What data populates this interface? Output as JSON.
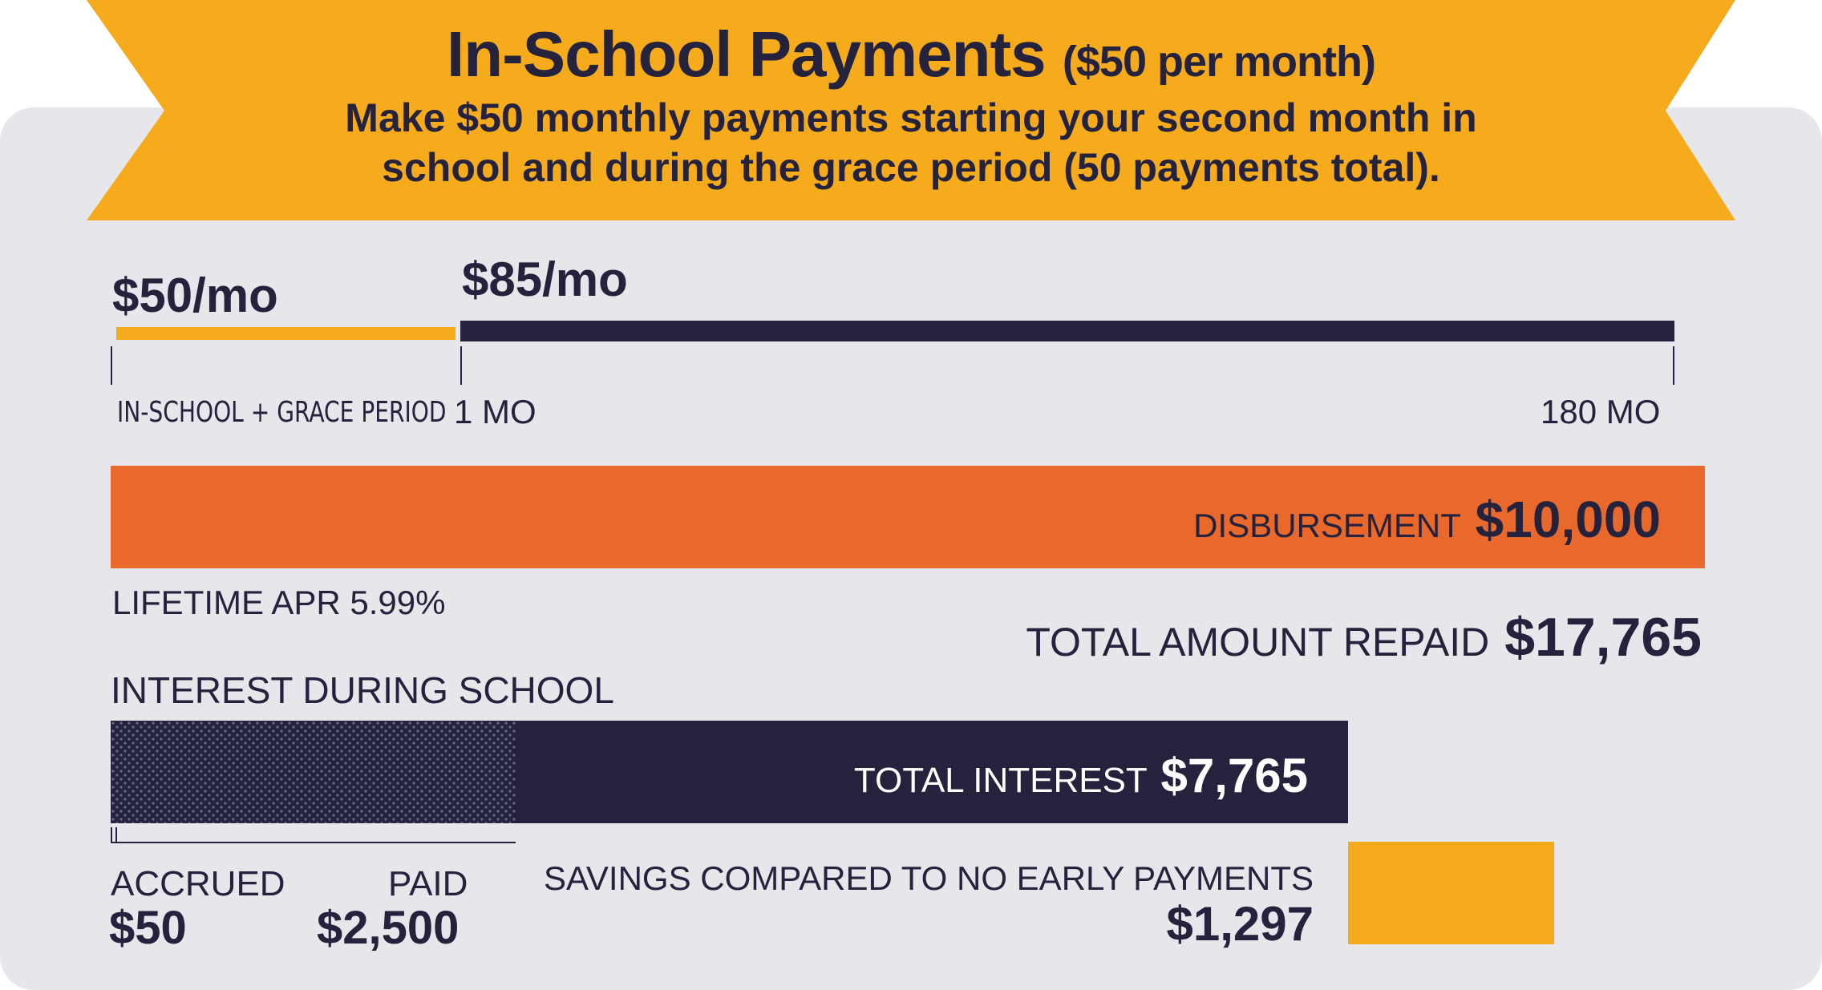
{
  "header": {
    "title": "In-School Payments",
    "title_suffix": "($50 per month)",
    "subtitle_line1": "Make $50 monthly payments starting your second month in",
    "subtitle_line2": "school and during the grace period (50 payments total)."
  },
  "timeline": {
    "inschool_rate": "$50/mo",
    "repay_rate": "$85/mo",
    "inschool_label": "IN-SCHOOL + GRACE PERIOD",
    "start_label": "1 MO",
    "end_label": "180 MO"
  },
  "disbursement": {
    "label": "DISBURSEMENT",
    "value": "$10,000"
  },
  "apr": {
    "label": "LIFETIME APR 5.99%"
  },
  "total_repaid": {
    "label": "TOTAL AMOUNT REPAID",
    "value": "$17,765"
  },
  "interest": {
    "heading": "INTEREST DURING SCHOOL",
    "total_label": "TOTAL INTEREST",
    "total_value": "$7,765",
    "accrued_label": "ACCRUED",
    "accrued_value": "$50",
    "paid_label": "PAID",
    "paid_value": "$2,500"
  },
  "savings": {
    "label": "SAVINGS COMPARED TO NO EARLY PAYMENTS",
    "value": "$1,297"
  },
  "colors": {
    "navy": "#24223d",
    "gold": "#f5ab1b",
    "orange": "#e9692c",
    "card": "#e7e6ea"
  }
}
